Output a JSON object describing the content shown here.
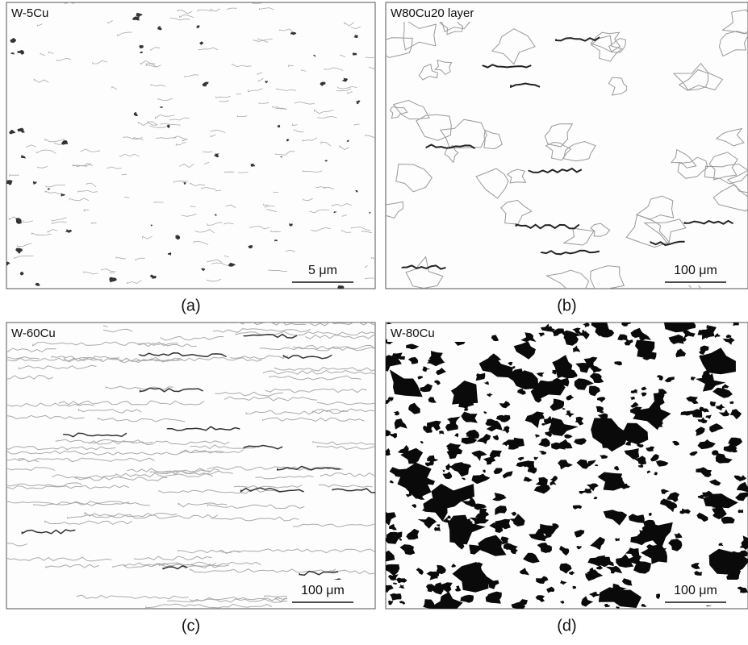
{
  "panels": [
    {
      "label": "W-5Cu",
      "scale_bar": "5 μm",
      "caption": "(a)"
    },
    {
      "label": "W80Cu20 layer",
      "scale_bar": "100 μm",
      "caption": "(b)"
    },
    {
      "label": "W-60Cu",
      "scale_bar": "100 μm",
      "caption": "(c)"
    },
    {
      "label": "W-80Cu",
      "scale_bar": "100 μm",
      "caption": "(d)"
    }
  ]
}
